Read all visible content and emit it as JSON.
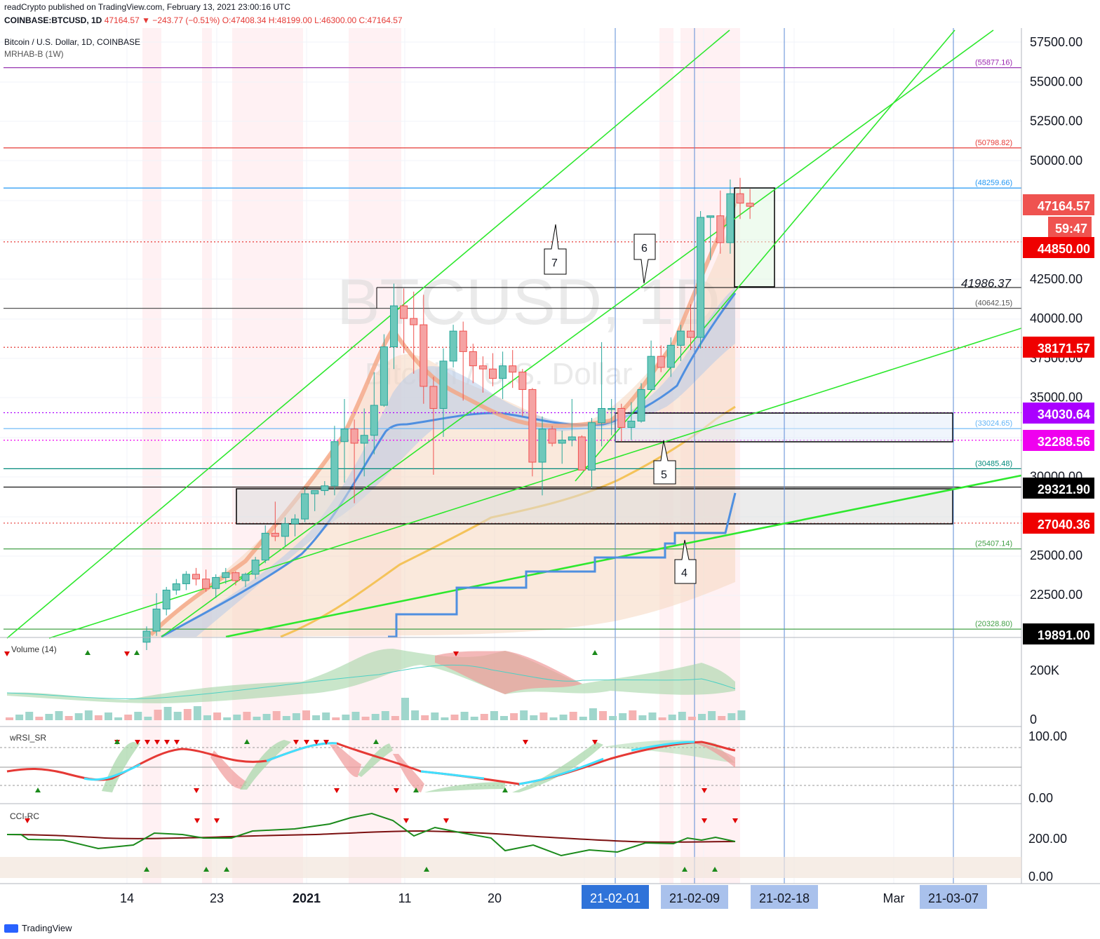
{
  "header": {
    "publish_line": "readCrypto published on TradingView.com, February 13, 2021 23:00:16 UTC",
    "symbol": "COINBASE:BTCUSD, 1D",
    "last": "47164.57",
    "change": "▼ −243.77 (−0.51%)",
    "ohlc": "O:47408.34 H:48199.00 L:46300.00 C:47164.57",
    "title": "Bitcoin / U.S. Dollar, 1D, COINBASE",
    "indicator": "MRHAB-B (1W)"
  },
  "watermark": {
    "symbol": "BTCUSD, 1D",
    "name": "Bitcoin / U.S. Dollar"
  },
  "footer": {
    "brand": "TradingView"
  },
  "chart_data": {
    "type": "candlestick",
    "price_axis": {
      "ticks": [
        "57500.00",
        "55000.00",
        "52500.00",
        "50000.00",
        "42500.00",
        "40000.00",
        "37500.00",
        "35000.00",
        "30000.00",
        "25000.00",
        "22500.00"
      ],
      "ylim": [
        19900,
        58500
      ]
    },
    "time_axis": {
      "labels": [
        "14",
        "23",
        "2021",
        "11",
        "20",
        "21-02-01",
        "21-02-09",
        "21-02-18",
        "Mar",
        "21-03-07"
      ]
    },
    "price_badges": [
      {
        "value": "47164.57",
        "color": "#ef5350"
      },
      {
        "value": "59:47",
        "color": "#ef5350"
      },
      {
        "value": "44850.00",
        "color": "#ef0000"
      },
      {
        "value": "38171.57",
        "color": "#ef0000"
      },
      {
        "value": "34030.64",
        "color": "#aa00ff"
      },
      {
        "value": "32288.56",
        "color": "#ef00ef"
      },
      {
        "value": "29321.90",
        "color": "#000000"
      },
      {
        "value": "27040.36",
        "color": "#ef0000"
      },
      {
        "value": "19891.00",
        "color": "#000000"
      }
    ],
    "level_labels": [
      {
        "value": "(55877.16)",
        "color": "#9c27b0"
      },
      {
        "value": "(50798.82)",
        "color": "#e53935"
      },
      {
        "value": "(48259.66)",
        "color": "#2196f3"
      },
      {
        "value": "41986.37",
        "color": "#131722"
      },
      {
        "value": "(40642.15)",
        "color": "#555555"
      },
      {
        "value": "(33024.65)",
        "color": "#64b5f6"
      },
      {
        "value": "(30485.48)",
        "color": "#00897b"
      },
      {
        "value": "(25407.14)",
        "color": "#43a047"
      },
      {
        "value": "(20328.80)",
        "color": "#43a047"
      }
    ],
    "callouts": [
      "7",
      "6",
      "5",
      "4"
    ],
    "candles": [
      {
        "o": 19500,
        "h": 20500,
        "l": 19000,
        "c": 20200
      },
      {
        "o": 20200,
        "h": 22600,
        "l": 19900,
        "c": 21600
      },
      {
        "o": 21600,
        "h": 23000,
        "l": 21200,
        "c": 22800
      },
      {
        "o": 22800,
        "h": 23500,
        "l": 22500,
        "c": 23200
      },
      {
        "o": 23200,
        "h": 24000,
        "l": 22800,
        "c": 23800
      },
      {
        "o": 23800,
        "h": 24200,
        "l": 23100,
        "c": 23500
      },
      {
        "o": 23500,
        "h": 24100,
        "l": 22700,
        "c": 22900
      },
      {
        "o": 22900,
        "h": 23800,
        "l": 22300,
        "c": 23600
      },
      {
        "o": 23600,
        "h": 24200,
        "l": 23200,
        "c": 23900
      },
      {
        "o": 23900,
        "h": 24000,
        "l": 23100,
        "c": 23400
      },
      {
        "o": 23400,
        "h": 23900,
        "l": 23000,
        "c": 23800
      },
      {
        "o": 23800,
        "h": 24900,
        "l": 23500,
        "c": 24700
      },
      {
        "o": 24700,
        "h": 26900,
        "l": 24500,
        "c": 26400
      },
      {
        "o": 26400,
        "h": 28400,
        "l": 25900,
        "c": 26200
      },
      {
        "o": 26200,
        "h": 27400,
        "l": 25600,
        "c": 27000
      },
      {
        "o": 27000,
        "h": 27600,
        "l": 26200,
        "c": 27300
      },
      {
        "o": 27300,
        "h": 29300,
        "l": 27100,
        "c": 28900
      },
      {
        "o": 28900,
        "h": 29100,
        "l": 27800,
        "c": 29100
      },
      {
        "o": 29100,
        "h": 29700,
        "l": 28800,
        "c": 29400
      },
      {
        "o": 29400,
        "h": 33200,
        "l": 28800,
        "c": 32200
      },
      {
        "o": 32200,
        "h": 34900,
        "l": 29600,
        "c": 33000
      },
      {
        "o": 33000,
        "h": 33600,
        "l": 28300,
        "c": 32100
      },
      {
        "o": 32100,
        "h": 34300,
        "l": 30000,
        "c": 32600
      },
      {
        "o": 32600,
        "h": 36600,
        "l": 31400,
        "c": 34500
      },
      {
        "o": 34500,
        "h": 39000,
        "l": 34400,
        "c": 38200
      },
      {
        "o": 38200,
        "h": 42200,
        "l": 36800,
        "c": 40800
      },
      {
        "o": 40800,
        "h": 41900,
        "l": 37800,
        "c": 40000
      },
      {
        "o": 40000,
        "h": 41700,
        "l": 36500,
        "c": 39600
      },
      {
        "o": 39600,
        "h": 41500,
        "l": 34600,
        "c": 35700
      },
      {
        "o": 35700,
        "h": 36300,
        "l": 30100,
        "c": 34300
      },
      {
        "o": 34300,
        "h": 38100,
        "l": 32500,
        "c": 37300
      },
      {
        "o": 37300,
        "h": 39600,
        "l": 36900,
        "c": 39200
      },
      {
        "o": 39200,
        "h": 39800,
        "l": 34800,
        "c": 37900
      },
      {
        "o": 37900,
        "h": 38400,
        "l": 35900,
        "c": 37000
      },
      {
        "o": 37000,
        "h": 37600,
        "l": 35300,
        "c": 36800
      },
      {
        "o": 36800,
        "h": 37800,
        "l": 35700,
        "c": 36200
      },
      {
        "o": 36200,
        "h": 37900,
        "l": 34900,
        "c": 37000
      },
      {
        "o": 37000,
        "h": 38000,
        "l": 35600,
        "c": 36600
      },
      {
        "o": 36600,
        "h": 36800,
        "l": 33800,
        "c": 35500
      },
      {
        "o": 35500,
        "h": 35600,
        "l": 30000,
        "c": 30900
      },
      {
        "o": 30900,
        "h": 33800,
        "l": 28800,
        "c": 33000
      },
      {
        "o": 33000,
        "h": 33200,
        "l": 31900,
        "c": 32100
      },
      {
        "o": 32100,
        "h": 32900,
        "l": 30800,
        "c": 32300
      },
      {
        "o": 32300,
        "h": 34900,
        "l": 31900,
        "c": 32500
      },
      {
        "o": 32500,
        "h": 32600,
        "l": 30400,
        "c": 30400
      },
      {
        "o": 30400,
        "h": 33700,
        "l": 29300,
        "c": 33400
      },
      {
        "o": 33400,
        "h": 38500,
        "l": 31900,
        "c": 34300
      },
      {
        "o": 34300,
        "h": 34900,
        "l": 32600,
        "c": 34300
      },
      {
        "o": 34300,
        "h": 34600,
        "l": 32200,
        "c": 33100
      },
      {
        "o": 33100,
        "h": 34700,
        "l": 32300,
        "c": 33500
      },
      {
        "o": 33500,
        "h": 35900,
        "l": 33400,
        "c": 35500
      },
      {
        "o": 35500,
        "h": 38600,
        "l": 35400,
        "c": 37600
      },
      {
        "o": 37600,
        "h": 38300,
        "l": 36600,
        "c": 36900
      },
      {
        "o": 36900,
        "h": 38800,
        "l": 36300,
        "c": 38300
      },
      {
        "o": 38300,
        "h": 39600,
        "l": 37300,
        "c": 39200
      },
      {
        "o": 39200,
        "h": 40900,
        "l": 38000,
        "c": 38800
      },
      {
        "o": 38800,
        "h": 46800,
        "l": 38100,
        "c": 46400
      },
      {
        "o": 46400,
        "h": 46400,
        "l": 43700,
        "c": 46500
      },
      {
        "o": 46500,
        "h": 48100,
        "l": 44100,
        "c": 44800
      },
      {
        "o": 44800,
        "h": 48800,
        "l": 44100,
        "c": 47900
      },
      {
        "o": 47900,
        "h": 48900,
        "l": 46300,
        "c": 47300
      },
      {
        "o": 47300,
        "h": 48200,
        "l": 46300,
        "c": 47100
      }
    ],
    "volume": {
      "label": "Volume (14)",
      "ticks": [
        "200K",
        "0"
      ]
    },
    "wrsi": {
      "label": "wRSI_SR",
      "ticks": [
        "100.00",
        "0.00"
      ]
    },
    "cci": {
      "label": "CCI-RC",
      "ticks": [
        "200.00",
        "0.00"
      ]
    }
  }
}
